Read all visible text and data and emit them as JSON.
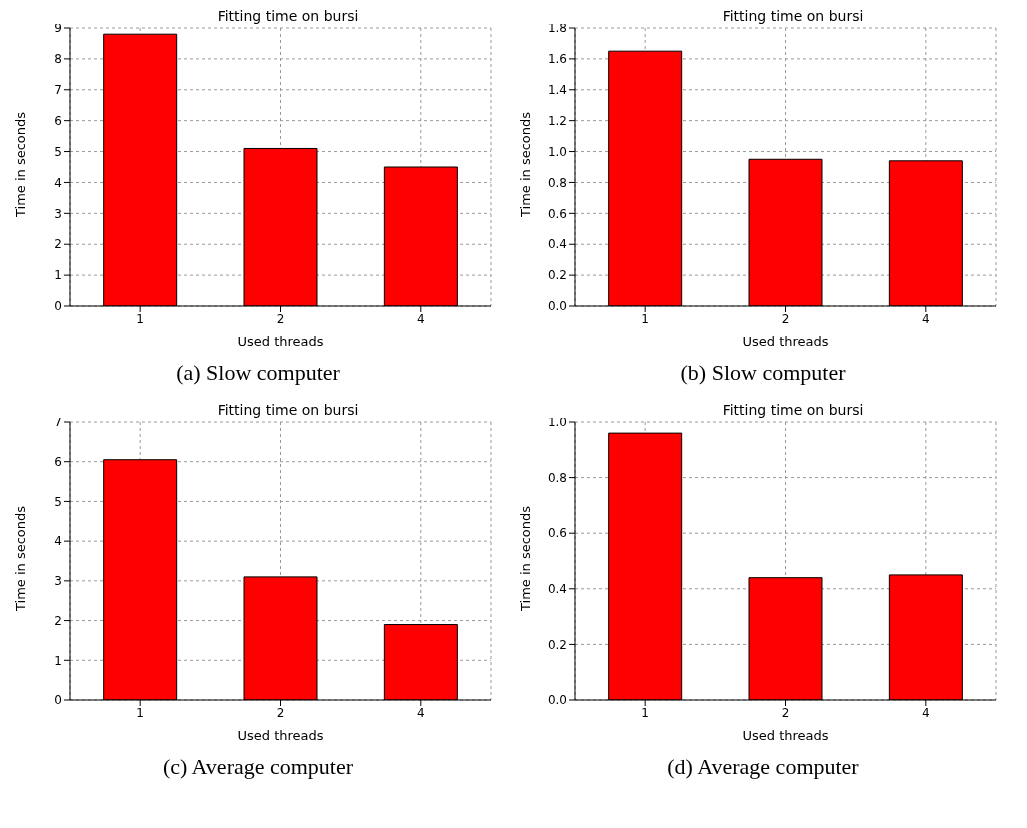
{
  "chart_data": [
    {
      "type": "bar",
      "title": "Fitting time on bursi",
      "xlabel": "Used threads",
      "ylabel": "Time in seconds",
      "categories": [
        "1",
        "2",
        "4"
      ],
      "values": [
        8.8,
        5.1,
        4.5
      ],
      "color": "#ff0000",
      "ylim": [
        0,
        9
      ],
      "yticks": [
        0,
        1,
        2,
        3,
        4,
        5,
        6,
        7,
        8,
        9
      ],
      "grid": true,
      "annotations": [
        "(a) Slow computer"
      ]
    },
    {
      "type": "bar",
      "title": "Fitting time on bursi",
      "xlabel": "Used threads",
      "ylabel": "Time in seconds",
      "categories": [
        "1",
        "2",
        "4"
      ],
      "values": [
        1.65,
        0.95,
        0.94
      ],
      "color": "#ff0000",
      "ylim": [
        0,
        1.8
      ],
      "yticks": [
        {
          "value": 0,
          "label": "0.0"
        },
        {
          "value": 0.2,
          "label": "0.2"
        },
        {
          "value": 0.4,
          "label": "0.4"
        },
        {
          "value": 0.6,
          "label": "0.6"
        },
        {
          "value": 0.8,
          "label": "0.8"
        },
        {
          "value": 1,
          "label": "1.0"
        },
        {
          "value": 1.2,
          "label": "1.2"
        },
        {
          "value": 1.4,
          "label": "1.4"
        },
        {
          "value": 1.6,
          "label": "1.6"
        },
        {
          "value": 1.8,
          "label": "1.8"
        }
      ],
      "grid": true,
      "annotations": [
        "(b) Slow computer"
      ]
    },
    {
      "type": "bar",
      "title": "Fitting time on bursi",
      "xlabel": "Used threads",
      "ylabel": "Time in seconds",
      "categories": [
        "1",
        "2",
        "4"
      ],
      "values": [
        6.05,
        3.1,
        1.9
      ],
      "color": "#ff0000",
      "ylim": [
        0,
        7
      ],
      "yticks": [
        0,
        1,
        2,
        3,
        4,
        5,
        6,
        7
      ],
      "grid": true,
      "annotations": [
        "(c) Average computer"
      ]
    },
    {
      "type": "bar",
      "title": "Fitting time on bursi",
      "xlabel": "Used threads",
      "ylabel": "Time in seconds",
      "categories": [
        "1",
        "2",
        "4"
      ],
      "values": [
        0.96,
        0.44,
        0.45
      ],
      "color": "#ff0000",
      "ylim": [
        0,
        1
      ],
      "yticks": [
        {
          "value": 0,
          "label": "0.0"
        },
        {
          "value": 0.2,
          "label": "0.2"
        },
        {
          "value": 0.4,
          "label": "0.4"
        },
        {
          "value": 0.6,
          "label": "0.6"
        },
        {
          "value": 0.8,
          "label": "0.8"
        },
        {
          "value": 1,
          "label": "1.0"
        }
      ],
      "grid": true,
      "annotations": [
        "(d) Average computer"
      ]
    }
  ]
}
